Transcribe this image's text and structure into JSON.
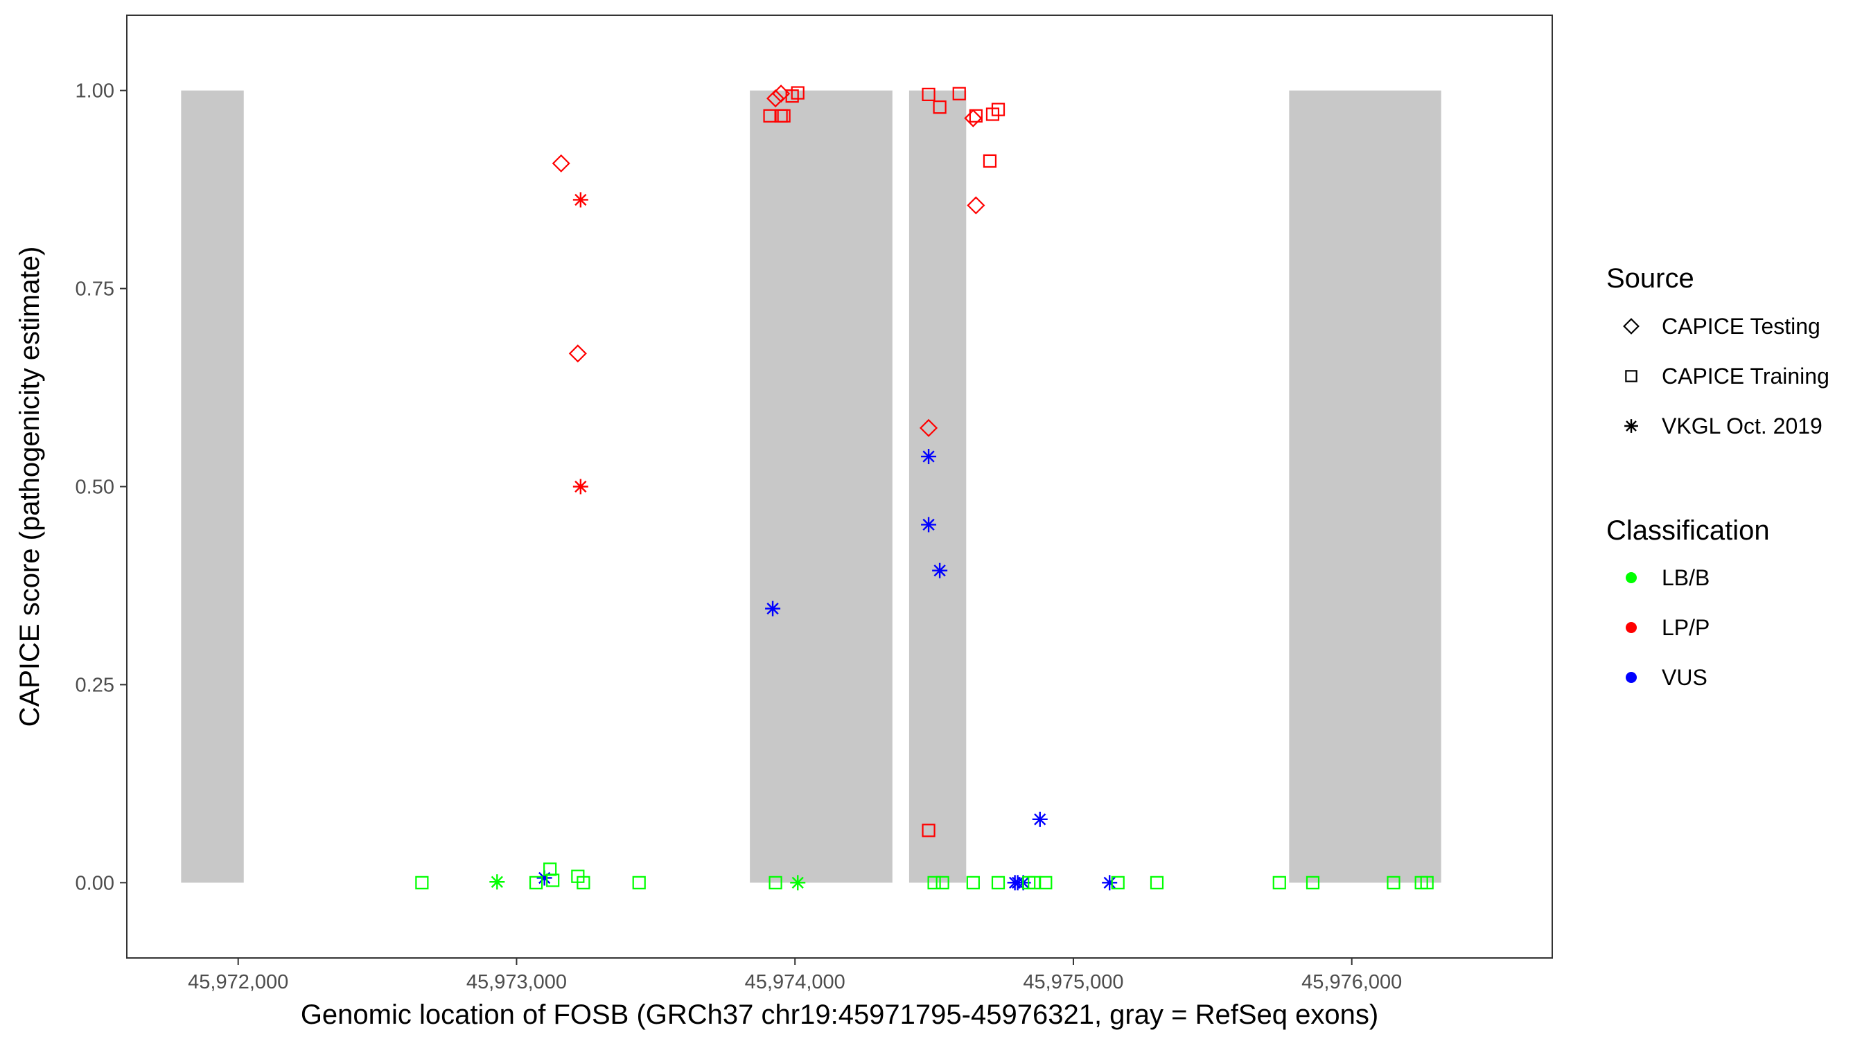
{
  "chart_data": {
    "type": "scatter",
    "title": "",
    "xlabel": "Genomic location of FOSB (GRCh37 chr19:45971795-45976321, gray = RefSeq exons)",
    "ylabel": "CAPICE score (pathogenicity estimate)",
    "xlim": [
      45971600,
      45976720
    ],
    "ylim": [
      -0.095,
      1.095
    ],
    "x_ticks": [
      45972000,
      45973000,
      45974000,
      45975000,
      45976000
    ],
    "x_tick_labels": [
      "45,972,000",
      "45,973,000",
      "45,974,000",
      "45,975,000",
      "45,976,000"
    ],
    "y_ticks": [
      0,
      0.25,
      0.5,
      0.75,
      1.0
    ],
    "y_tick_labels": [
      "0.00",
      "0.25",
      "0.50",
      "0.75",
      "1.00"
    ],
    "grid": false,
    "legend_position": "right",
    "exons": [
      {
        "start": 45971795,
        "end": 45972020
      },
      {
        "start": 45973838,
        "end": 45974350
      },
      {
        "start": 45974410,
        "end": 45974615
      },
      {
        "start": 45975775,
        "end": 45976321
      }
    ],
    "exon_color": "#c8c8c8",
    "sources": [
      {
        "key": "testing",
        "label": "CAPICE Testing",
        "shape": "diamond"
      },
      {
        "key": "training",
        "label": "CAPICE Training",
        "shape": "square"
      },
      {
        "key": "vkgl",
        "label": "VKGL Oct. 2019",
        "shape": "asterisk"
      }
    ],
    "classifications": [
      {
        "key": "lbb",
        "label": "LB/B",
        "color": "#00ff00"
      },
      {
        "key": "lpp",
        "label": "LP/P",
        "color": "#ff0000"
      },
      {
        "key": "vus",
        "label": "VUS",
        "color": "#0000ff"
      }
    ],
    "points": [
      {
        "x": 45973160,
        "y": 0.908,
        "source": "testing",
        "class": "lpp"
      },
      {
        "x": 45973220,
        "y": 0.668,
        "source": "testing",
        "class": "lpp"
      },
      {
        "x": 45973930,
        "y": 0.99,
        "source": "testing",
        "class": "lpp"
      },
      {
        "x": 45973950,
        "y": 0.996,
        "source": "testing",
        "class": "lpp"
      },
      {
        "x": 45974640,
        "y": 0.965,
        "source": "testing",
        "class": "lpp"
      },
      {
        "x": 45974650,
        "y": 0.855,
        "source": "testing",
        "class": "lpp"
      },
      {
        "x": 45974480,
        "y": 0.574,
        "source": "testing",
        "class": "lpp"
      },
      {
        "x": 45973230,
        "y": 0.862,
        "source": "vkgl",
        "class": "lpp"
      },
      {
        "x": 45973230,
        "y": 0.5,
        "source": "vkgl",
        "class": "lpp"
      },
      {
        "x": 45973910,
        "y": 0.968,
        "source": "training",
        "class": "lpp"
      },
      {
        "x": 45973960,
        "y": 0.968,
        "source": "training",
        "class": "lpp"
      },
      {
        "x": 45973950,
        "y": 0.968,
        "source": "training",
        "class": "lpp"
      },
      {
        "x": 45973990,
        "y": 0.993,
        "source": "training",
        "class": "lpp"
      },
      {
        "x": 45974010,
        "y": 0.997,
        "source": "training",
        "class": "lpp"
      },
      {
        "x": 45974480,
        "y": 0.995,
        "source": "training",
        "class": "lpp"
      },
      {
        "x": 45974520,
        "y": 0.979,
        "source": "training",
        "class": "lpp"
      },
      {
        "x": 45974590,
        "y": 0.996,
        "source": "training",
        "class": "lpp"
      },
      {
        "x": 45974650,
        "y": 0.968,
        "source": "training",
        "class": "lpp"
      },
      {
        "x": 45974710,
        "y": 0.97,
        "source": "training",
        "class": "lpp"
      },
      {
        "x": 45974730,
        "y": 0.976,
        "source": "training",
        "class": "lpp"
      },
      {
        "x": 45974700,
        "y": 0.911,
        "source": "training",
        "class": "lpp"
      },
      {
        "x": 45974480,
        "y": 0.066,
        "source": "training",
        "class": "lpp"
      },
      {
        "x": 45973920,
        "y": 0.346,
        "source": "vkgl",
        "class": "vus"
      },
      {
        "x": 45974480,
        "y": 0.538,
        "source": "vkgl",
        "class": "vus"
      },
      {
        "x": 45974480,
        "y": 0.452,
        "source": "vkgl",
        "class": "vus"
      },
      {
        "x": 45974520,
        "y": 0.394,
        "source": "vkgl",
        "class": "vus"
      },
      {
        "x": 45974880,
        "y": 0.08,
        "source": "vkgl",
        "class": "vus"
      },
      {
        "x": 45973100,
        "y": 0.006,
        "source": "vkgl",
        "class": "vus"
      },
      {
        "x": 45974790,
        "y": 0.0,
        "source": "vkgl",
        "class": "vus"
      },
      {
        "x": 45974800,
        "y": 0.0,
        "source": "vkgl",
        "class": "vus"
      },
      {
        "x": 45974820,
        "y": 0.0,
        "source": "vkgl",
        "class": "vus"
      },
      {
        "x": 45975130,
        "y": 0.0,
        "source": "vkgl",
        "class": "vus"
      },
      {
        "x": 45972660,
        "y": 0.0,
        "source": "training",
        "class": "lbb"
      },
      {
        "x": 45973070,
        "y": 0.0,
        "source": "training",
        "class": "lbb"
      },
      {
        "x": 45973120,
        "y": 0.017,
        "source": "training",
        "class": "lbb"
      },
      {
        "x": 45973130,
        "y": 0.003,
        "source": "training",
        "class": "lbb"
      },
      {
        "x": 45973220,
        "y": 0.008,
        "source": "training",
        "class": "lbb"
      },
      {
        "x": 45973240,
        "y": 0.0,
        "source": "training",
        "class": "lbb"
      },
      {
        "x": 45973440,
        "y": 0.0,
        "source": "training",
        "class": "lbb"
      },
      {
        "x": 45973930,
        "y": 0.0,
        "source": "training",
        "class": "lbb"
      },
      {
        "x": 45974500,
        "y": 0.0,
        "source": "training",
        "class": "lbb"
      },
      {
        "x": 45974530,
        "y": 0.0,
        "source": "training",
        "class": "lbb"
      },
      {
        "x": 45974640,
        "y": 0.0,
        "source": "training",
        "class": "lbb"
      },
      {
        "x": 45974730,
        "y": 0.0,
        "source": "training",
        "class": "lbb"
      },
      {
        "x": 45974840,
        "y": 0.0,
        "source": "training",
        "class": "lbb"
      },
      {
        "x": 45974860,
        "y": 0.0,
        "source": "training",
        "class": "lbb"
      },
      {
        "x": 45974900,
        "y": 0.0,
        "source": "training",
        "class": "lbb"
      },
      {
        "x": 45975160,
        "y": 0.0,
        "source": "training",
        "class": "lbb"
      },
      {
        "x": 45975300,
        "y": 0.0,
        "source": "training",
        "class": "lbb"
      },
      {
        "x": 45975740,
        "y": 0.0,
        "source": "training",
        "class": "lbb"
      },
      {
        "x": 45975860,
        "y": 0.0,
        "source": "training",
        "class": "lbb"
      },
      {
        "x": 45976150,
        "y": 0.0,
        "source": "training",
        "class": "lbb"
      },
      {
        "x": 45976250,
        "y": 0.0,
        "source": "training",
        "class": "lbb"
      },
      {
        "x": 45976270,
        "y": 0.0,
        "source": "training",
        "class": "lbb"
      },
      {
        "x": 45972930,
        "y": 0.001,
        "source": "vkgl",
        "class": "lbb"
      },
      {
        "x": 45974010,
        "y": 0.0,
        "source": "vkgl",
        "class": "lbb"
      }
    ]
  },
  "legend": {
    "source_title": "Source",
    "classification_title": "Classification"
  }
}
